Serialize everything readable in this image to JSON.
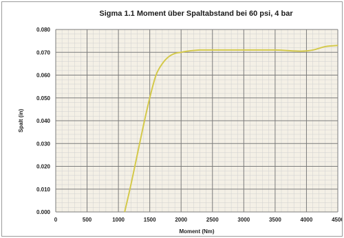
{
  "chart_data": {
    "type": "line",
    "title": "Sigma 1.1 Moment über Spaltabstand bei 60 psi, 4 bar",
    "xlabel": "Moment (Nm)",
    "ylabel": "Spalt (in)",
    "xlim": [
      0,
      4500
    ],
    "ylim": [
      0,
      0.08
    ],
    "x_ticks": [
      "0",
      "500",
      "1000",
      "1500",
      "2000",
      "2500",
      "3000",
      "3500",
      "4000",
      "4500"
    ],
    "y_ticks": [
      "0.000",
      "0.010",
      "0.020",
      "0.030",
      "0.040",
      "0.050",
      "0.060",
      "0.070",
      "0.080"
    ],
    "grid": true,
    "legend": "none",
    "line_color": "#d4c94a",
    "plot_background": "#f4f0e6",
    "series": [
      {
        "x": [
          1100,
          1200,
          1300,
          1400,
          1500,
          1600,
          1700,
          1800,
          1900,
          2000,
          2100,
          2300,
          2500,
          3000,
          3500,
          3900,
          4100,
          4300,
          4500
        ],
        "y": [
          0.0,
          0.012,
          0.025,
          0.038,
          0.05,
          0.06,
          0.065,
          0.068,
          0.0695,
          0.07,
          0.0705,
          0.071,
          0.071,
          0.071,
          0.071,
          0.0705,
          0.071,
          0.0725,
          0.073
        ]
      }
    ]
  }
}
